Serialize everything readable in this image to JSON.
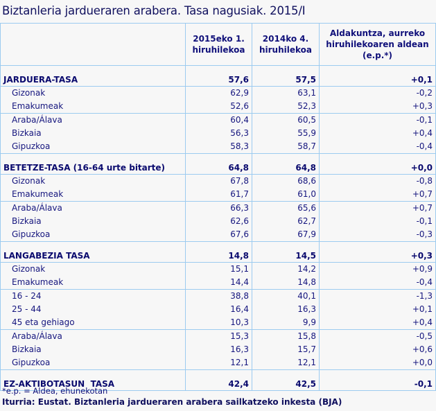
{
  "title": "Biztanleria jardueraren arabera. Tasa nagusiak. 2015/I",
  "table": {
    "headers": [
      "",
      "2015eko 1. hiruhilekoa",
      "2014ko 4. hiruhilekoa",
      "Aldakuntza, aurreko hiruhilekoaren aldean (e.p.*)"
    ],
    "header_lines": {
      "h1a": "2015eko 1.",
      "h1b": "hiruhilekoa",
      "h2a": "2014ko 4.",
      "h2b": "hiruhilekoa",
      "h3a": "Aldakuntza, aurreko",
      "h3b": "hiruhilekoaren aldean",
      "h3c": "(e.p.*)"
    },
    "sections": [
      {
        "label": "JARDUERA-TASA",
        "v1": "57,6",
        "v2": "57,5",
        "diff": "+0,1",
        "rows": [
          {
            "label": "Gizonak",
            "v1": "62,9",
            "v2": "63,1",
            "diff": "-0,2"
          },
          {
            "label": "Emakumeak",
            "v1": "52,6",
            "v2": "52,3",
            "diff": "+0,3"
          },
          {
            "label": "Araba/Álava",
            "v1": "60,4",
            "v2": "60,5",
            "diff": "-0,1"
          },
          {
            "label": "Bizkaia",
            "v1": "56,3",
            "v2": "55,9",
            "diff": "+0,4"
          },
          {
            "label": "Gipuzkoa",
            "v1": "58,3",
            "v2": "58,7",
            "diff": "-0,4"
          }
        ]
      },
      {
        "label": "BETETZE-TASA (16-64 urte bitarte)",
        "v1": "64,8",
        "v2": "64,8",
        "diff": "+0,0",
        "rows": [
          {
            "label": "Gizonak",
            "v1": "67,8",
            "v2": "68,6",
            "diff": "-0,8"
          },
          {
            "label": "Emakumeak",
            "v1": "61,7",
            "v2": "61,0",
            "diff": "+0,7"
          },
          {
            "label": "Araba/Álava",
            "v1": "66,3",
            "v2": "65,6",
            "diff": "+0,7"
          },
          {
            "label": "Bizkaia",
            "v1": "62,6",
            "v2": "62,7",
            "diff": "-0,1"
          },
          {
            "label": "Gipuzkoa",
            "v1": "67,6",
            "v2": "67,9",
            "diff": "-0,3"
          }
        ]
      },
      {
        "label": "LANGABEZIA TASA",
        "v1": "14,8",
        "v2": "14,5",
        "diff": "+0,3",
        "rows": [
          {
            "label": "Gizonak",
            "v1": "15,1",
            "v2": "14,2",
            "diff": "+0,9"
          },
          {
            "label": "Emakumeak",
            "v1": "14,4",
            "v2": "14,8",
            "diff": "-0,4"
          },
          {
            "label": "16 - 24",
            "v1": "38,8",
            "v2": "40,1",
            "diff": "-1,3"
          },
          {
            "label": "25 - 44",
            "v1": "16,4",
            "v2": "16,3",
            "diff": "+0,1"
          },
          {
            "label": "45 eta gehiago",
            "v1": "10,3",
            "v2": "9,9",
            "diff": "+0,4"
          },
          {
            "label": "Araba/Álava",
            "v1": "15,3",
            "v2": "15,8",
            "diff": "-0,5"
          },
          {
            "label": "Bizkaia",
            "v1": "16,3",
            "v2": "15,7",
            "diff": "+0,6"
          },
          {
            "label": "Gipuzkoa",
            "v1": "12,1",
            "v2": "12,1",
            "diff": "+0,0"
          }
        ]
      },
      {
        "label": "EZ-AKTIBOTASUN  TASA",
        "v1": "42,4",
        "v2": "42,5",
        "diff": "-0,1",
        "rows": []
      }
    ]
  },
  "footnote": "*e.p. = Aldea, ehunekotan",
  "source": "Iturria: Eustat. Biztanleria jardueraren arabera sailkatzeko inkesta (BJA)",
  "colors": {
    "text": "#10107a",
    "border": "#9ccbf0",
    "background": "#f7f7f7"
  }
}
